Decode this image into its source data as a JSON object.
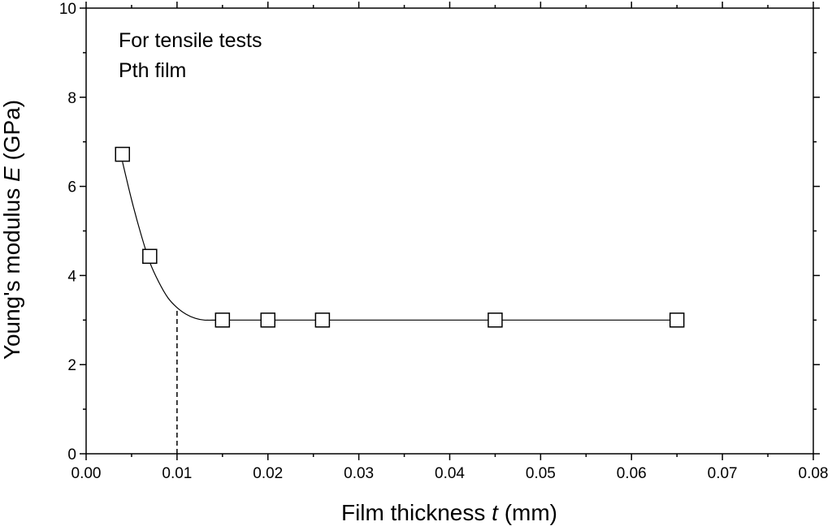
{
  "chart_data": {
    "type": "scatter",
    "annotations": [
      "For tensile tests",
      "Pth film"
    ],
    "xlabel": {
      "prefix": "Film thickness ",
      "symbol": "t",
      "suffix": " (mm)"
    },
    "ylabel": {
      "prefix": "Young's modulus ",
      "symbol": "E",
      "suffix": " (GPa)"
    },
    "xlim": [
      0,
      0.08
    ],
    "ylim": [
      0,
      10
    ],
    "x_ticks": [
      "0.00",
      "0.01",
      "0.02",
      "0.03",
      "0.04",
      "0.05",
      "0.06",
      "0.07",
      "0.08"
    ],
    "y_ticks": [
      "0",
      "2",
      "4",
      "6",
      "8",
      "10"
    ],
    "grid": false,
    "marker": "open-square",
    "series": [
      {
        "points": [
          {
            "x": 0.004,
            "y": 6.72
          },
          {
            "x": 0.007,
            "y": 4.43
          },
          {
            "x": 0.015,
            "y": 3.0
          },
          {
            "x": 0.02,
            "y": 3.0
          },
          {
            "x": 0.026,
            "y": 3.0
          },
          {
            "x": 0.045,
            "y": 3.0
          },
          {
            "x": 0.065,
            "y": 3.0
          }
        ]
      }
    ],
    "fit_curve": [
      [
        0.004,
        6.55
      ],
      [
        0.005,
        5.7
      ],
      [
        0.006,
        4.95
      ],
      [
        0.007,
        4.3
      ],
      [
        0.008,
        3.85
      ],
      [
        0.009,
        3.5
      ],
      [
        0.01,
        3.28
      ],
      [
        0.011,
        3.13
      ],
      [
        0.012,
        3.04
      ],
      [
        0.013,
        3.0
      ],
      [
        0.015,
        3.0
      ],
      [
        0.02,
        3.0
      ],
      [
        0.026,
        3.0
      ],
      [
        0.045,
        3.0
      ],
      [
        0.065,
        3.0
      ]
    ],
    "dashed_marker": {
      "x": 0.01,
      "y_from": 0,
      "y_to": 3.28
    }
  }
}
